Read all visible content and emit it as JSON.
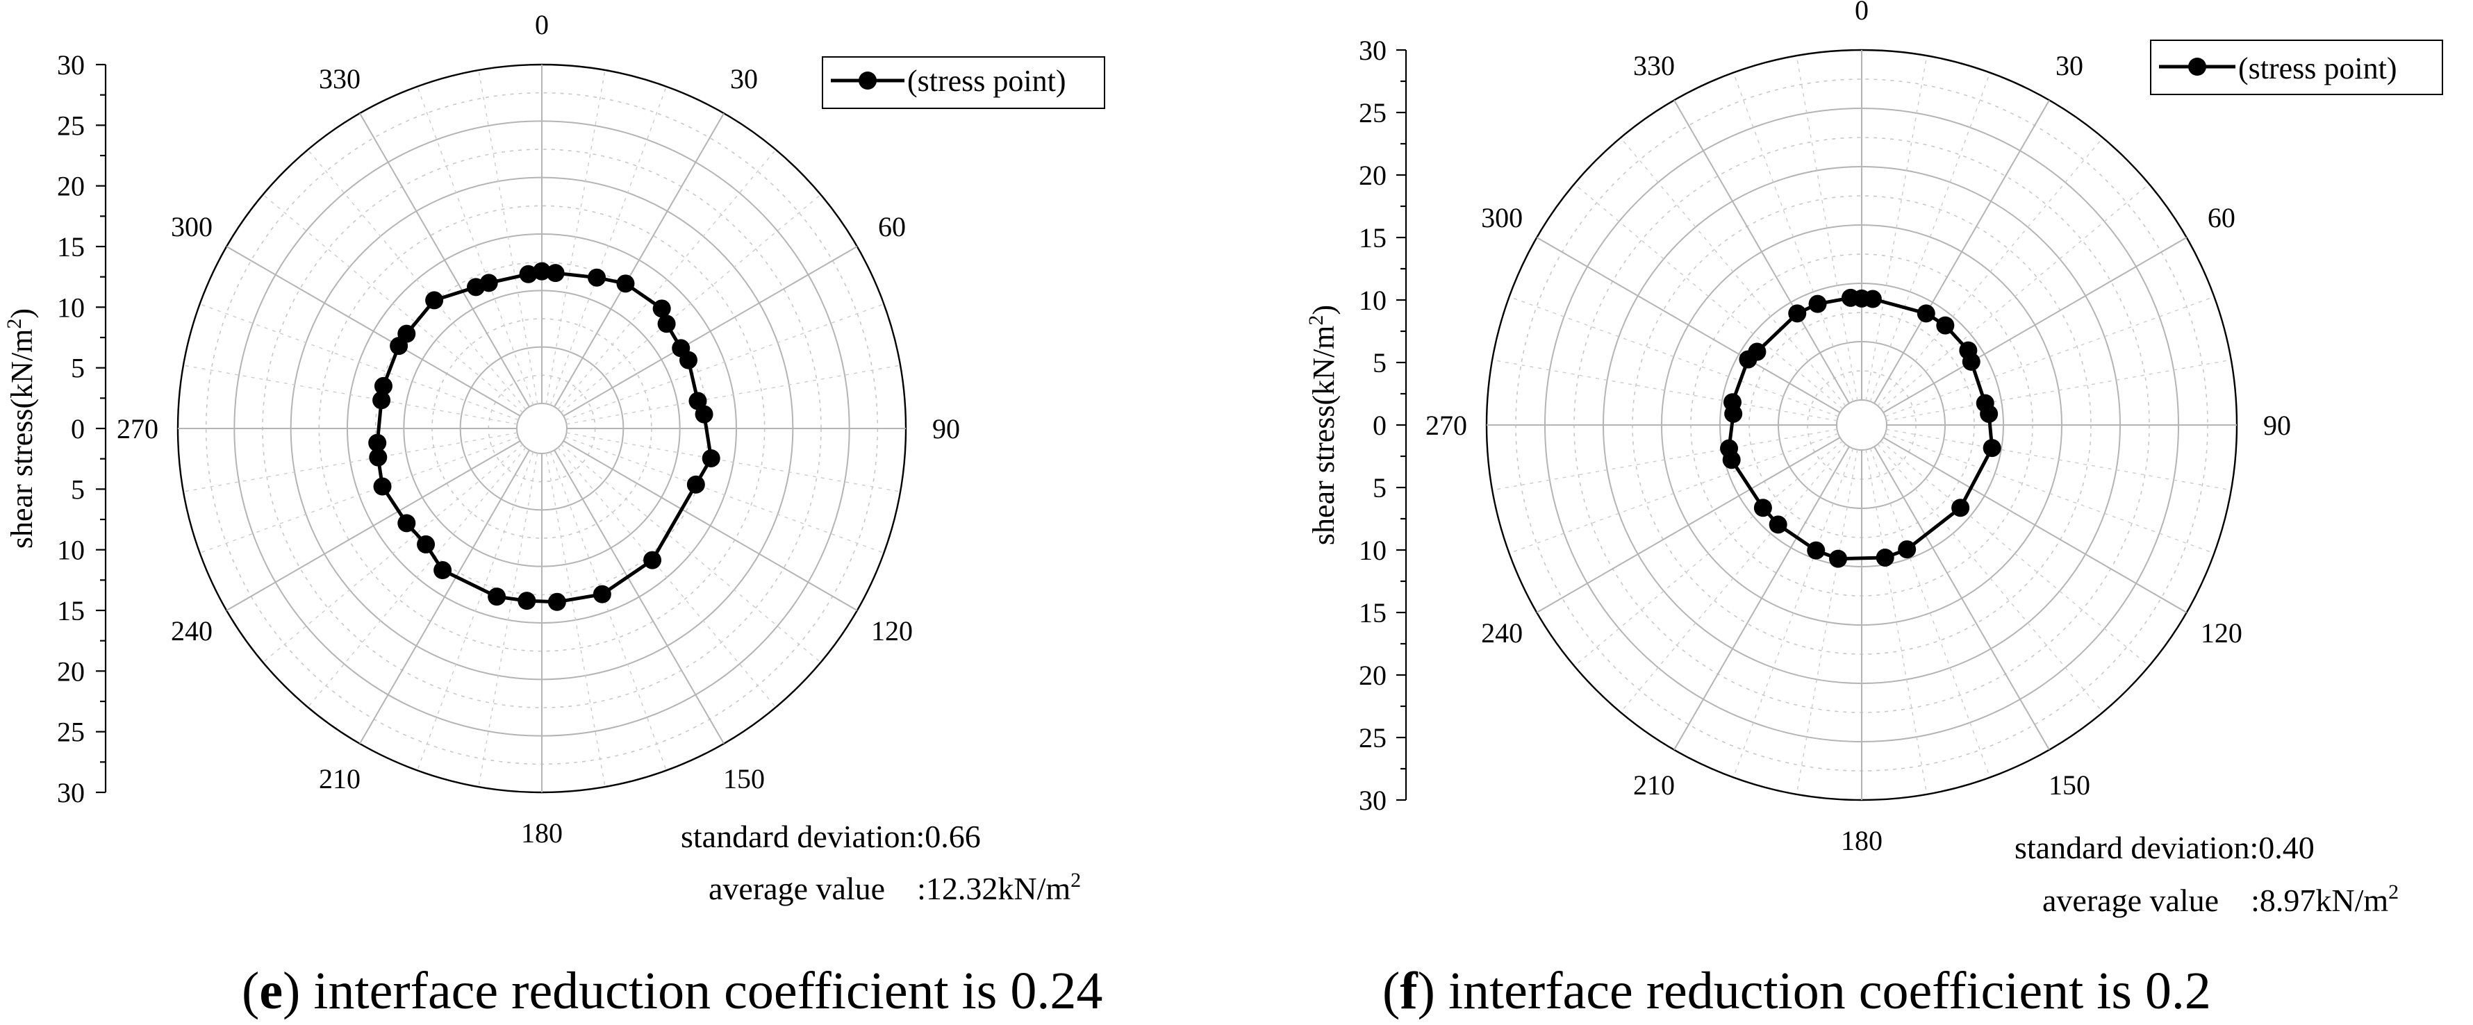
{
  "chart_data": [
    {
      "type": "polar-line",
      "panel_letter": "e",
      "caption_text": " interface reduction coefficient is 0.24",
      "ylabel": "shear stress(kN/m",
      "ylabel_sup": "2",
      "ylabel_close": ")",
      "r_range": [
        0,
        30
      ],
      "r_ticks": [
        30,
        25,
        20,
        15,
        10,
        5,
        0,
        5,
        10,
        15,
        20,
        25,
        30
      ],
      "angle_labels": [
        "0",
        "30",
        "60",
        "90",
        "120",
        "150",
        "180",
        "210",
        "240",
        "270",
        "300",
        "330"
      ],
      "legend": "(stress point)",
      "std_label": "standard deviation:0.66",
      "avg_label": "average value    :12.32kN/m",
      "avg_sup": "2",
      "series": [
        {
          "name": "(stress point)",
          "angles": [
            0,
            5,
            20,
            30,
            45,
            50,
            60,
            65,
            80,
            85,
            100,
            110,
            140,
            160,
            175,
            185,
            195,
            215,
            225,
            235,
            250,
            260,
            265,
            280,
            285,
            300,
            305,
            320,
            335,
            340,
            355
          ],
          "values": [
            11.7,
            11.6,
            12.0,
            12.6,
            12.8,
            12.2,
            12.0,
            12.1,
            11.8,
            12.2,
            13.0,
            12.3,
            13.0,
            13.4,
            13.2,
            13.1,
            13.2,
            13.1,
            12.3,
            12.4,
            12.8,
            12.5,
            12.4,
            12.2,
            12.3,
            12.4,
            12.4,
            12.6,
            11.6,
            11.5,
            11.5
          ]
        }
      ]
    },
    {
      "type": "polar-line",
      "panel_letter": "f",
      "caption_text": " interface reduction coefficient is 0.2",
      "ylabel": "shear stress(kN/m",
      "ylabel_sup": "2",
      "ylabel_close": ")",
      "r_range": [
        0,
        30
      ],
      "r_ticks": [
        30,
        25,
        20,
        15,
        10,
        5,
        0,
        5,
        10,
        15,
        20,
        25,
        30
      ],
      "angle_labels": [
        "0",
        "30",
        "60",
        "90",
        "120",
        "150",
        "180",
        "210",
        "240",
        "270",
        "300",
        "330"
      ],
      "legend": "(stress point)",
      "std_label": "standard deviation:0.40",
      "avg_label": "average value    :8.97kN/m",
      "avg_sup": "2",
      "series": [
        {
          "name": "(stress point)",
          "angles": [
            0,
            5,
            30,
            40,
            55,
            60,
            80,
            85,
            100,
            130,
            160,
            170,
            190,
            200,
            220,
            230,
            255,
            260,
            275,
            280,
            300,
            305,
            330,
            340,
            355
          ],
          "values": [
            8.7,
            8.7,
            8.9,
            9.0,
            9.0,
            8.7,
            8.6,
            8.8,
            9.2,
            8.9,
            9.2,
            9.4,
            9.5,
            9.3,
            9.0,
            8.9,
            9.4,
            9.4,
            8.9,
            9.1,
            9.1,
            8.8,
            8.9,
            8.9,
            8.8
          ]
        }
      ]
    }
  ]
}
